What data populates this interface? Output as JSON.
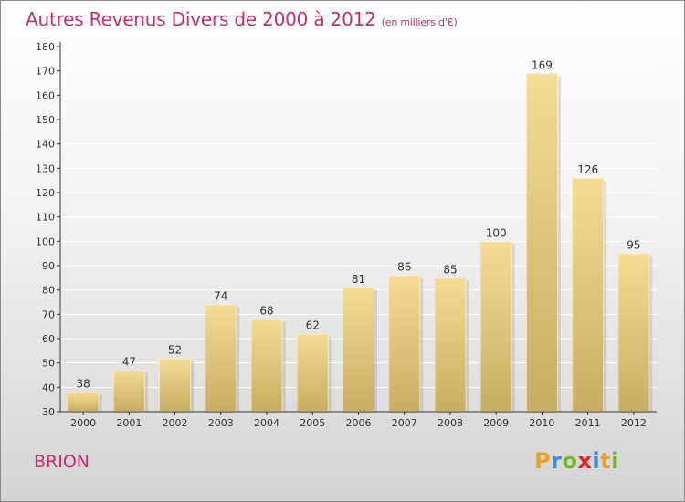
{
  "title": "Autres Revenus Divers de 2000 à 2012",
  "subtitle": "(en milliers d'€)",
  "place": "BRION",
  "logo": {
    "text": "Proxiti",
    "letters": [
      {
        "ch": "P",
        "color": "#f0a020"
      },
      {
        "ch": "r",
        "color": "#3a8fd8"
      },
      {
        "ch": "o",
        "color": "#78b830"
      },
      {
        "ch": "x",
        "color": "#e02828"
      },
      {
        "ch": "i",
        "color": "#3a8fd8"
      },
      {
        "ch": "t",
        "color": "#f0a020"
      },
      {
        "ch": "i",
        "color": "#78b830"
      }
    ]
  },
  "colors": {
    "title": "#c03070",
    "bar_top": "#f5dc94",
    "bar_bottom": "#c8ad62",
    "grid": "#ffffff",
    "axis": "#333333"
  },
  "chart_data": {
    "type": "bar",
    "title": "Autres Revenus Divers de 2000 à 2012",
    "subtitle": "(en milliers d'€)",
    "categories": [
      "2000",
      "2001",
      "2002",
      "2003",
      "2004",
      "2005",
      "2006",
      "2007",
      "2008",
      "2009",
      "2010",
      "2011",
      "2012"
    ],
    "values": [
      38,
      47,
      52,
      74,
      68,
      62,
      81,
      86,
      85,
      100,
      169,
      126,
      95
    ],
    "ylim": [
      30,
      180
    ],
    "yticks": [
      30,
      40,
      50,
      60,
      70,
      80,
      90,
      100,
      110,
      120,
      130,
      140,
      150,
      160,
      170,
      180
    ],
    "grid": true,
    "data_labels": true
  }
}
